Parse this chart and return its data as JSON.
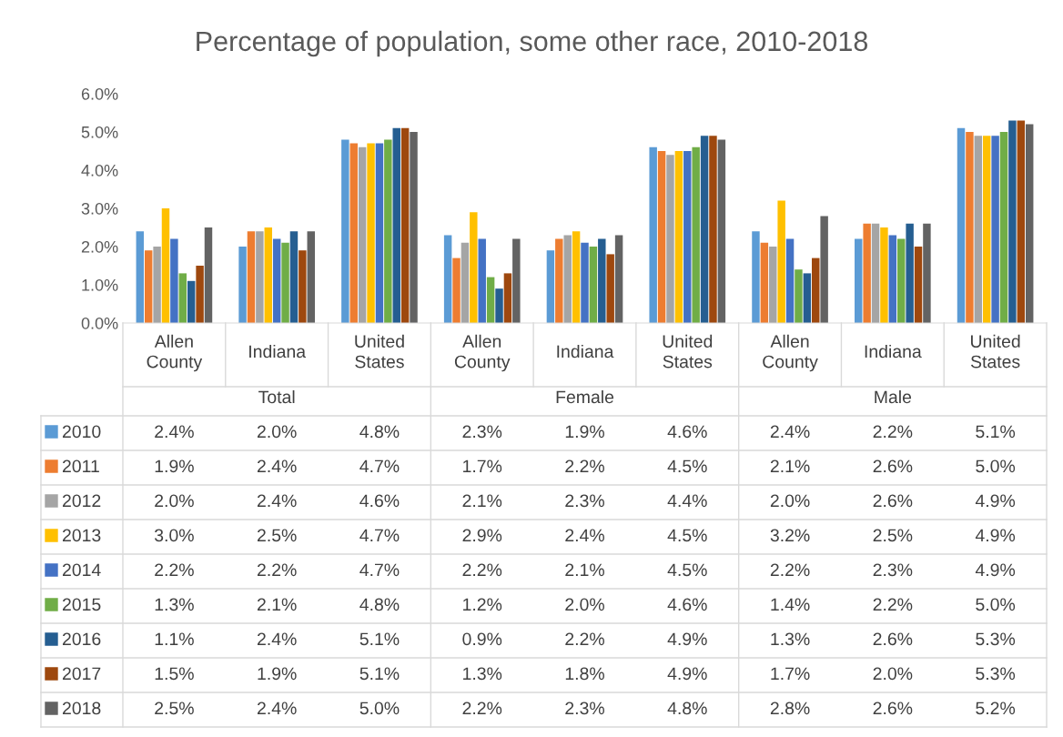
{
  "chart_data": {
    "type": "bar",
    "title": "Percentage of population, some other race, 2010-2018",
    "categories": [
      "Allen County",
      "Indiana",
      "United States",
      "Allen County",
      "Indiana",
      "United States",
      "Allen County",
      "Indiana",
      "United States"
    ],
    "annotations": [
      "Total",
      "Female",
      "Male"
    ],
    "ylim": [
      0,
      6
    ],
    "yticks": [
      {
        "value": 0,
        "label": "0.0%"
      },
      {
        "value": 1,
        "label": "1.0%"
      },
      {
        "value": 2,
        "label": "2.0%"
      },
      {
        "value": 3,
        "label": "3.0%"
      },
      {
        "value": 4,
        "label": "4.0%"
      },
      {
        "value": 5,
        "label": "5.0%"
      },
      {
        "value": 6,
        "label": "6.0%"
      }
    ],
    "grid": false,
    "legend": "bottom",
    "series": [
      {
        "name": "2010",
        "color": "#5b9bd5",
        "values": [
          2.4,
          2.0,
          4.8,
          2.3,
          1.9,
          4.6,
          2.4,
          2.2,
          5.1
        ],
        "value_labels": [
          "2.4%",
          "2.0%",
          "4.8%",
          "2.3%",
          "1.9%",
          "4.6%",
          "2.4%",
          "2.2%",
          "5.1%"
        ]
      },
      {
        "name": "2011",
        "color": "#ed7d31",
        "values": [
          1.9,
          2.4,
          4.7,
          1.7,
          2.2,
          4.5,
          2.1,
          2.6,
          5.0
        ],
        "value_labels": [
          "1.9%",
          "2.4%",
          "4.7%",
          "1.7%",
          "2.2%",
          "4.5%",
          "2.1%",
          "2.6%",
          "5.0%"
        ]
      },
      {
        "name": "2012",
        "color": "#a5a5a5",
        "values": [
          2.0,
          2.4,
          4.6,
          2.1,
          2.3,
          4.4,
          2.0,
          2.6,
          4.9
        ],
        "value_labels": [
          "2.0%",
          "2.4%",
          "4.6%",
          "2.1%",
          "2.3%",
          "4.4%",
          "2.0%",
          "2.6%",
          "4.9%"
        ]
      },
      {
        "name": "2013",
        "color": "#ffc000",
        "values": [
          3.0,
          2.5,
          4.7,
          2.9,
          2.4,
          4.5,
          3.2,
          2.5,
          4.9
        ],
        "value_labels": [
          "3.0%",
          "2.5%",
          "4.7%",
          "2.9%",
          "2.4%",
          "4.5%",
          "3.2%",
          "2.5%",
          "4.9%"
        ]
      },
      {
        "name": "2014",
        "color": "#4472c4",
        "values": [
          2.2,
          2.2,
          4.7,
          2.2,
          2.1,
          4.5,
          2.2,
          2.3,
          4.9
        ],
        "value_labels": [
          "2.2%",
          "2.2%",
          "4.7%",
          "2.2%",
          "2.1%",
          "4.5%",
          "2.2%",
          "2.3%",
          "4.9%"
        ]
      },
      {
        "name": "2015",
        "color": "#70ad47",
        "values": [
          1.3,
          2.1,
          4.8,
          1.2,
          2.0,
          4.6,
          1.4,
          2.2,
          5.0
        ],
        "value_labels": [
          "1.3%",
          "2.1%",
          "4.8%",
          "1.2%",
          "2.0%",
          "4.6%",
          "1.4%",
          "2.2%",
          "5.0%"
        ]
      },
      {
        "name": "2016",
        "color": "#255e91",
        "values": [
          1.1,
          2.4,
          5.1,
          0.9,
          2.2,
          4.9,
          1.3,
          2.6,
          5.3
        ],
        "value_labels": [
          "1.1%",
          "2.4%",
          "5.1%",
          "0.9%",
          "2.2%",
          "4.9%",
          "1.3%",
          "2.6%",
          "5.3%"
        ]
      },
      {
        "name": "2017",
        "color": "#9e480e",
        "values": [
          1.5,
          1.9,
          5.1,
          1.3,
          1.8,
          4.9,
          1.7,
          2.0,
          5.3
        ],
        "value_labels": [
          "1.5%",
          "1.9%",
          "5.1%",
          "1.3%",
          "1.8%",
          "4.9%",
          "1.7%",
          "2.0%",
          "5.3%"
        ]
      },
      {
        "name": "2018",
        "color": "#636363",
        "values": [
          2.5,
          2.4,
          5.0,
          2.2,
          2.3,
          4.8,
          2.8,
          2.6,
          5.2
        ],
        "value_labels": [
          "2.5%",
          "2.4%",
          "5.0%",
          "2.2%",
          "2.3%",
          "4.8%",
          "2.8%",
          "2.6%",
          "5.2%"
        ]
      }
    ]
  }
}
